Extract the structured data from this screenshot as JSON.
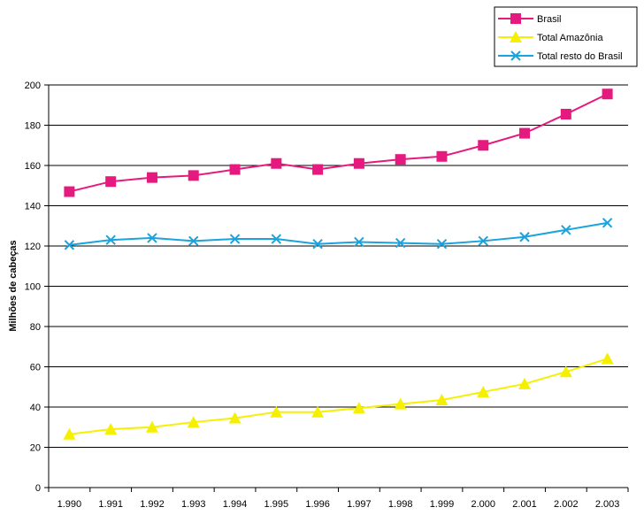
{
  "chart_data": {
    "type": "line",
    "ylabel": "Milhões de cabeças",
    "xlabel": "",
    "title": "",
    "ylim": [
      0,
      200
    ],
    "yticks": [
      0,
      20,
      40,
      60,
      80,
      100,
      120,
      140,
      160,
      180,
      200
    ],
    "grid": "horizontal",
    "legend": "top-right",
    "categories": [
      "1.990",
      "1.991",
      "1.992",
      "1.993",
      "1.994",
      "1.995",
      "1.996",
      "1.997",
      "1.998",
      "1.999",
      "2.000",
      "2.001",
      "2.002",
      "2.003"
    ],
    "series": [
      {
        "name": "Brasil",
        "color": "#e6197f",
        "marker": "square",
        "values": [
          147,
          152,
          154,
          155,
          158,
          161,
          158,
          161,
          163,
          164.5,
          170,
          176,
          185.5,
          195.5
        ]
      },
      {
        "name": "Total Amazônia",
        "color": "#f5f000",
        "marker": "triangle",
        "values": [
          26.5,
          29,
          30,
          32.5,
          34.5,
          37.5,
          37.5,
          39.5,
          41.5,
          43.5,
          47.5,
          51.5,
          57.5,
          64
        ]
      },
      {
        "name": "Total resto do Brasil",
        "color": "#1aa3dd",
        "marker": "x",
        "values": [
          120.5,
          123,
          124,
          122.5,
          123.5,
          123.5,
          121,
          122,
          121.5,
          121,
          122.5,
          124.5,
          128,
          131.5
        ]
      }
    ]
  }
}
